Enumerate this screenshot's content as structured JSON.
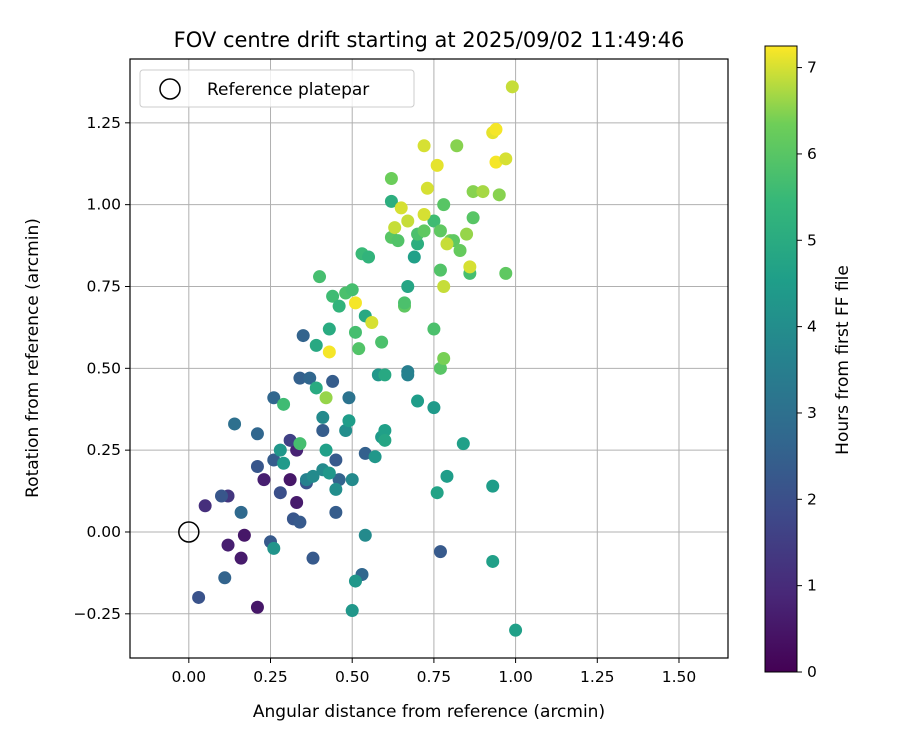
{
  "chart_data": {
    "type": "scatter",
    "title": "FOV centre drift starting at 2025/09/02 11:49:46",
    "xlabel": "Angular distance from reference (arcmin)",
    "ylabel": "Rotation from reference (arcmin)",
    "xlim": [
      -0.18,
      1.65
    ],
    "ylim": [
      -0.385,
      1.445
    ],
    "xticks": [
      0.0,
      0.25,
      0.5,
      0.75,
      1.0,
      1.25,
      1.5
    ],
    "xtick_labels": [
      "0.00",
      "0.25",
      "0.50",
      "0.75",
      "1.00",
      "1.25",
      "1.50"
    ],
    "yticks": [
      -0.25,
      0.0,
      0.25,
      0.5,
      0.75,
      1.0,
      1.25
    ],
    "ytick_labels": [
      "−0.25",
      "0.00",
      "0.25",
      "0.50",
      "0.75",
      "1.00",
      "1.25"
    ],
    "grid": true,
    "legend": {
      "position": "upper left",
      "entries": [
        "Reference platepar"
      ]
    },
    "reference_point": {
      "x": 0.0,
      "y": 0.0
    },
    "colorbar": {
      "label": "Hours from first FF file",
      "colormap": "viridis",
      "range": [
        0,
        7.25
      ],
      "ticks": [
        0,
        1,
        2,
        3,
        4,
        5,
        6,
        7
      ],
      "tick_labels": [
        "0",
        "1",
        "2",
        "3",
        "4",
        "5",
        "6",
        "7"
      ]
    },
    "points": [
      {
        "x": 0.21,
        "y": -0.23,
        "c": 0.5
      },
      {
        "x": 0.16,
        "y": -0.08,
        "c": 0.6
      },
      {
        "x": 0.12,
        "y": -0.04,
        "c": 0.7
      },
      {
        "x": 0.17,
        "y": -0.01,
        "c": 0.5
      },
      {
        "x": 0.05,
        "y": 0.08,
        "c": 1.1
      },
      {
        "x": 0.12,
        "y": 0.11,
        "c": 1.3
      },
      {
        "x": 0.23,
        "y": 0.16,
        "c": 0.7
      },
      {
        "x": 0.31,
        "y": 0.16,
        "c": 0.5
      },
      {
        "x": 0.33,
        "y": 0.09,
        "c": 0.6
      },
      {
        "x": 0.33,
        "y": 0.25,
        "c": 0.8
      },
      {
        "x": 0.31,
        "y": 0.28,
        "c": 1.6
      },
      {
        "x": 0.03,
        "y": -0.2,
        "c": 2.1
      },
      {
        "x": 0.11,
        "y": -0.14,
        "c": 2.6
      },
      {
        "x": 0.16,
        "y": 0.06,
        "c": 2.8
      },
      {
        "x": 0.1,
        "y": 0.11,
        "c": 2.2
      },
      {
        "x": 0.28,
        "y": 0.12,
        "c": 2.0
      },
      {
        "x": 0.32,
        "y": 0.04,
        "c": 2.2
      },
      {
        "x": 0.34,
        "y": 0.03,
        "c": 2.3
      },
      {
        "x": 0.25,
        "y": -0.03,
        "c": 2.3
      },
      {
        "x": 0.21,
        "y": 0.2,
        "c": 2.2
      },
      {
        "x": 0.26,
        "y": 0.22,
        "c": 2.4
      },
      {
        "x": 0.21,
        "y": 0.3,
        "c": 2.7
      },
      {
        "x": 0.14,
        "y": 0.33,
        "c": 3.0
      },
      {
        "x": 0.26,
        "y": 0.41,
        "c": 2.7
      },
      {
        "x": 0.34,
        "y": 0.47,
        "c": 2.5
      },
      {
        "x": 0.36,
        "y": 0.15,
        "c": 2.1
      },
      {
        "x": 0.38,
        "y": -0.08,
        "c": 2.3
      },
      {
        "x": 0.35,
        "y": 0.6,
        "c": 2.6
      },
      {
        "x": 0.37,
        "y": 0.47,
        "c": 2.7
      },
      {
        "x": 0.41,
        "y": 0.31,
        "c": 2.4
      },
      {
        "x": 0.44,
        "y": 0.46,
        "c": 2.4
      },
      {
        "x": 0.45,
        "y": 0.22,
        "c": 2.3
      },
      {
        "x": 0.45,
        "y": 0.06,
        "c": 2.4
      },
      {
        "x": 0.46,
        "y": 0.16,
        "c": 2.6
      },
      {
        "x": 0.49,
        "y": 0.41,
        "c": 3.1
      },
      {
        "x": 0.53,
        "y": -0.13,
        "c": 2.7
      },
      {
        "x": 0.54,
        "y": 0.24,
        "c": 2.5
      },
      {
        "x": 0.77,
        "y": -0.06,
        "c": 2.3
      },
      {
        "x": 0.67,
        "y": 0.49,
        "c": 3.5
      },
      {
        "x": 0.67,
        "y": 0.48,
        "c": 3.6
      },
      {
        "x": 0.36,
        "y": 0.16,
        "c": 3.6
      },
      {
        "x": 0.38,
        "y": 0.17,
        "c": 3.9
      },
      {
        "x": 0.41,
        "y": 0.35,
        "c": 3.9
      },
      {
        "x": 0.41,
        "y": 0.19,
        "c": 3.9
      },
      {
        "x": 0.43,
        "y": 0.18,
        "c": 4.3
      },
      {
        "x": 0.45,
        "y": 0.13,
        "c": 4.0
      },
      {
        "x": 0.48,
        "y": 0.31,
        "c": 4.0
      },
      {
        "x": 0.49,
        "y": 0.34,
        "c": 4.5
      },
      {
        "x": 0.5,
        "y": 0.16,
        "c": 3.9
      },
      {
        "x": 0.54,
        "y": -0.01,
        "c": 3.9
      },
      {
        "x": 0.51,
        "y": -0.15,
        "c": 4.3
      },
      {
        "x": 0.5,
        "y": -0.24,
        "c": 4.3
      },
      {
        "x": 0.26,
        "y": -0.05,
        "c": 4.2
      },
      {
        "x": 0.28,
        "y": 0.25,
        "c": 4.3
      },
      {
        "x": 0.29,
        "y": 0.21,
        "c": 4.4
      },
      {
        "x": 0.42,
        "y": 0.25,
        "c": 4.6
      },
      {
        "x": 0.57,
        "y": 0.23,
        "c": 4.3
      },
      {
        "x": 0.58,
        "y": 0.48,
        "c": 4.3
      },
      {
        "x": 0.59,
        "y": 0.29,
        "c": 4.4
      },
      {
        "x": 0.6,
        "y": 0.31,
        "c": 4.6
      },
      {
        "x": 0.6,
        "y": 0.28,
        "c": 4.8
      },
      {
        "x": 0.6,
        "y": 0.48,
        "c": 4.9
      },
      {
        "x": 0.67,
        "y": 0.75,
        "c": 4.8
      },
      {
        "x": 0.69,
        "y": 0.84,
        "c": 4.6
      },
      {
        "x": 0.7,
        "y": 0.4,
        "c": 4.5
      },
      {
        "x": 0.75,
        "y": 0.38,
        "c": 4.4
      },
      {
        "x": 0.76,
        "y": 0.12,
        "c": 4.7
      },
      {
        "x": 0.79,
        "y": 0.17,
        "c": 4.5
      },
      {
        "x": 0.84,
        "y": 0.27,
        "c": 4.6
      },
      {
        "x": 0.93,
        "y": -0.09,
        "c": 4.6
      },
      {
        "x": 0.93,
        "y": 0.14,
        "c": 4.5
      },
      {
        "x": 1.0,
        "y": -0.3,
        "c": 4.6
      },
      {
        "x": 0.39,
        "y": 0.57,
        "c": 4.9
      },
      {
        "x": 0.39,
        "y": 0.44,
        "c": 5.0
      },
      {
        "x": 0.43,
        "y": 0.62,
        "c": 5.0
      },
      {
        "x": 0.54,
        "y": 0.66,
        "c": 4.9
      },
      {
        "x": 0.62,
        "y": 1.01,
        "c": 5.1
      },
      {
        "x": 0.7,
        "y": 0.88,
        "c": 5.1
      },
      {
        "x": 0.34,
        "y": 0.27,
        "c": 5.7
      },
      {
        "x": 0.29,
        "y": 0.39,
        "c": 5.6
      },
      {
        "x": 0.4,
        "y": 0.78,
        "c": 5.7
      },
      {
        "x": 0.44,
        "y": 0.72,
        "c": 5.6
      },
      {
        "x": 0.46,
        "y": 0.69,
        "c": 5.3
      },
      {
        "x": 0.48,
        "y": 0.73,
        "c": 5.8
      },
      {
        "x": 0.5,
        "y": 0.74,
        "c": 5.7
      },
      {
        "x": 0.51,
        "y": 0.61,
        "c": 5.7
      },
      {
        "x": 0.52,
        "y": 0.56,
        "c": 5.9
      },
      {
        "x": 0.53,
        "y": 0.85,
        "c": 5.5
      },
      {
        "x": 0.55,
        "y": 0.84,
        "c": 5.3
      },
      {
        "x": 0.59,
        "y": 0.58,
        "c": 5.8
      },
      {
        "x": 0.62,
        "y": 0.9,
        "c": 6.0
      },
      {
        "x": 0.62,
        "y": 1.08,
        "c": 6.3
      },
      {
        "x": 0.64,
        "y": 0.89,
        "c": 5.9
      },
      {
        "x": 0.66,
        "y": 0.69,
        "c": 6.1
      },
      {
        "x": 0.66,
        "y": 0.7,
        "c": 5.8
      },
      {
        "x": 0.7,
        "y": 0.91,
        "c": 5.8
      },
      {
        "x": 0.72,
        "y": 0.92,
        "c": 6.1
      },
      {
        "x": 0.75,
        "y": 0.95,
        "c": 5.6
      },
      {
        "x": 0.75,
        "y": 0.62,
        "c": 5.8
      },
      {
        "x": 0.77,
        "y": 0.8,
        "c": 5.9
      },
      {
        "x": 0.77,
        "y": 0.5,
        "c": 6.0
      },
      {
        "x": 0.77,
        "y": 0.92,
        "c": 6.1
      },
      {
        "x": 0.78,
        "y": 1.0,
        "c": 6.0
      },
      {
        "x": 0.78,
        "y": 0.53,
        "c": 6.4
      },
      {
        "x": 0.8,
        "y": 0.89,
        "c": 6.4
      },
      {
        "x": 0.81,
        "y": 0.89,
        "c": 6.1
      },
      {
        "x": 0.83,
        "y": 0.86,
        "c": 6.2
      },
      {
        "x": 0.82,
        "y": 1.18,
        "c": 6.5
      },
      {
        "x": 0.85,
        "y": 0.91,
        "c": 6.6
      },
      {
        "x": 0.86,
        "y": 0.79,
        "c": 5.7
      },
      {
        "x": 0.87,
        "y": 1.04,
        "c": 6.5
      },
      {
        "x": 0.87,
        "y": 0.96,
        "c": 6.0
      },
      {
        "x": 0.9,
        "y": 1.04,
        "c": 6.7
      },
      {
        "x": 0.95,
        "y": 1.03,
        "c": 6.5
      },
      {
        "x": 0.97,
        "y": 0.79,
        "c": 6.1
      },
      {
        "x": 0.42,
        "y": 0.41,
        "c": 6.6
      },
      {
        "x": 0.63,
        "y": 0.93,
        "c": 6.9
      },
      {
        "x": 0.65,
        "y": 0.99,
        "c": 7.0
      },
      {
        "x": 0.67,
        "y": 0.95,
        "c": 6.9
      },
      {
        "x": 0.72,
        "y": 0.97,
        "c": 7.0
      },
      {
        "x": 0.73,
        "y": 1.05,
        "c": 7.0
      },
      {
        "x": 0.72,
        "y": 1.18,
        "c": 7.0
      },
      {
        "x": 0.76,
        "y": 1.12,
        "c": 7.1
      },
      {
        "x": 0.78,
        "y": 0.75,
        "c": 6.9
      },
      {
        "x": 0.79,
        "y": 0.88,
        "c": 6.9
      },
      {
        "x": 0.86,
        "y": 0.81,
        "c": 7.0
      },
      {
        "x": 0.93,
        "y": 1.22,
        "c": 7.1
      },
      {
        "x": 0.94,
        "y": 1.23,
        "c": 7.2
      },
      {
        "x": 0.94,
        "y": 1.13,
        "c": 7.2
      },
      {
        "x": 0.97,
        "y": 1.14,
        "c": 7.0
      },
      {
        "x": 0.99,
        "y": 1.36,
        "c": 6.9
      },
      {
        "x": 0.51,
        "y": 0.7,
        "c": 7.2
      },
      {
        "x": 0.56,
        "y": 0.64,
        "c": 7.0
      },
      {
        "x": 0.43,
        "y": 0.55,
        "c": 7.2
      }
    ]
  }
}
